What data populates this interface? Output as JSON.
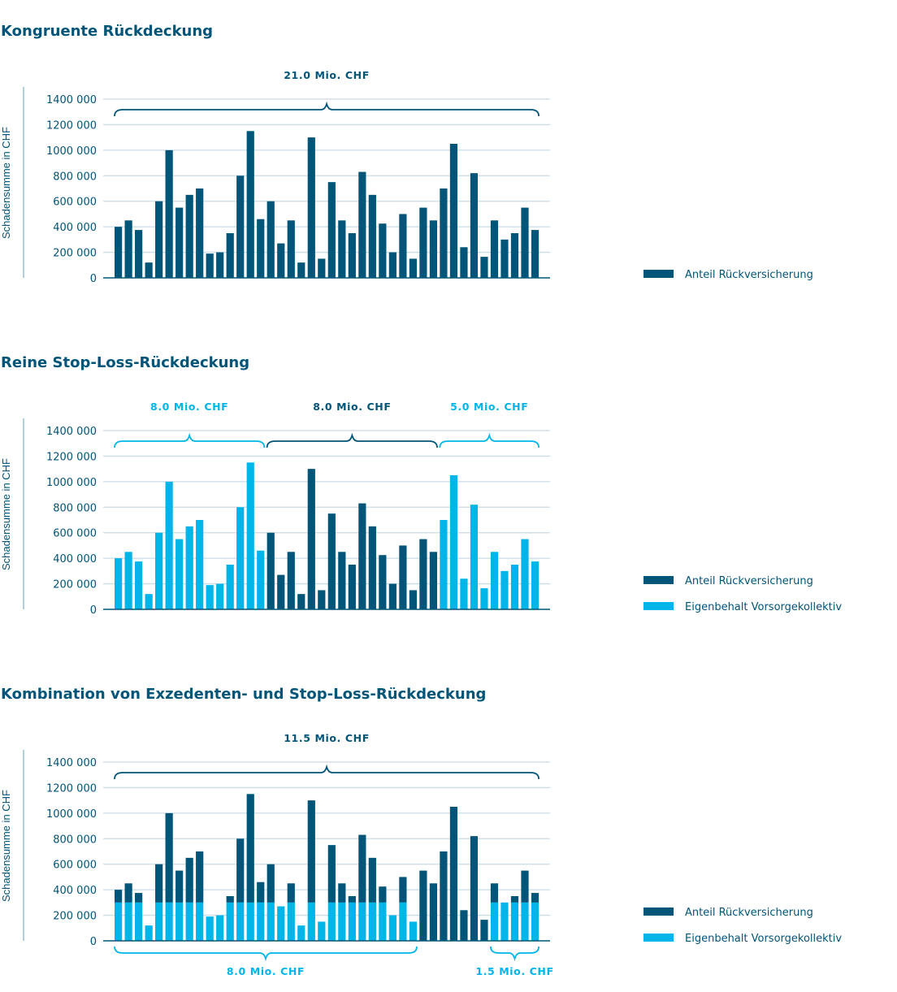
{
  "colors": {
    "dark": "#005578",
    "light": "#00b5e8",
    "grid": "#c9dbe4"
  },
  "chart_data": [
    {
      "type": "bar",
      "title": "Kongruente Rückdeckung",
      "ylabel": "Schadensumme in CHF",
      "ylim": [
        0,
        1400000
      ],
      "yticks": [
        "0",
        "200 000",
        "400 000",
        "600 000",
        "800 000",
        "1000 000",
        "1200 000",
        "1400 000"
      ],
      "grid": true,
      "legend_position": "right",
      "series": [
        {
          "name": "Anteil Rückversicherung",
          "color": "dark",
          "values": [
            400000,
            450000,
            375000,
            120000,
            600000,
            1000000,
            550000,
            650000,
            700000,
            190000,
            200000,
            350000,
            800000,
            1150000,
            460000,
            600000,
            270000,
            450000,
            120000,
            1100000,
            150000,
            750000,
            450000,
            350000,
            830000,
            650000,
            425000,
            200000,
            500000,
            150000,
            550000,
            450000,
            700000,
            1050000,
            240000,
            820000,
            165000,
            450000,
            300000,
            350000,
            550000,
            375000
          ]
        }
      ],
      "brackets": [
        {
          "label": "21.0 Mio. CHF",
          "from_bar": 0,
          "to_bar": 41,
          "color": "dark",
          "position": "top"
        }
      ]
    },
    {
      "type": "bar",
      "stacked": true,
      "title": "Reine Stop-Loss-Rückdeckung",
      "ylabel": "Schadensumme in CHF",
      "ylim": [
        0,
        1400000
      ],
      "yticks": [
        "0",
        "200 000",
        "400 000",
        "600 000",
        "800 000",
        "1000 000",
        "1200 000",
        "1400 000"
      ],
      "grid": true,
      "legend_position": "right",
      "series": [
        {
          "name": "Eigenbehalt Vorsorgekollektiv",
          "color": "light",
          "values": [
            400000,
            450000,
            375000,
            120000,
            600000,
            1000000,
            550000,
            650000,
            700000,
            190000,
            200000,
            350000,
            800000,
            1150000,
            460000,
            0,
            0,
            0,
            0,
            0,
            0,
            0,
            0,
            0,
            0,
            0,
            0,
            0,
            0,
            0,
            0,
            0,
            700000,
            1050000,
            240000,
            820000,
            165000,
            450000,
            300000,
            350000,
            550000,
            375000
          ]
        },
        {
          "name": "Anteil Rückversicherung",
          "color": "dark",
          "values": [
            0,
            0,
            0,
            0,
            0,
            0,
            0,
            0,
            0,
            0,
            0,
            0,
            0,
            0,
            0,
            600000,
            270000,
            450000,
            120000,
            1100000,
            150000,
            750000,
            450000,
            350000,
            830000,
            650000,
            425000,
            200000,
            500000,
            150000,
            550000,
            450000,
            0,
            0,
            0,
            0,
            0,
            0,
            0,
            0,
            0,
            0
          ]
        }
      ],
      "legend_order": [
        1,
        0
      ],
      "brackets": [
        {
          "label": "8.0 Mio. CHF",
          "from_bar": 0,
          "to_bar": 14,
          "color": "light",
          "position": "top"
        },
        {
          "label": "8.0 Mio. CHF",
          "from_bar": 15,
          "to_bar": 31,
          "color": "dark",
          "position": "top"
        },
        {
          "label": "5.0 Mio. CHF",
          "from_bar": 32,
          "to_bar": 41,
          "color": "light",
          "position": "top"
        }
      ]
    },
    {
      "type": "bar",
      "stacked": true,
      "title": "Kombination von Exzedenten- und Stop-Loss-Rückdeckung",
      "ylabel": "Schadensumme in CHF",
      "ylim": [
        0,
        1400000
      ],
      "yticks": [
        "0",
        "200 000",
        "400 000",
        "600 000",
        "800 000",
        "1000 000",
        "1200 000",
        "1400 000"
      ],
      "grid": true,
      "legend_position": "right",
      "series": [
        {
          "name": "Eigenbehalt Vorsorgekollektiv",
          "color": "light",
          "values": [
            300000,
            300000,
            300000,
            120000,
            300000,
            300000,
            300000,
            300000,
            300000,
            190000,
            200000,
            300000,
            300000,
            300000,
            300000,
            300000,
            270000,
            300000,
            120000,
            300000,
            150000,
            300000,
            300000,
            300000,
            300000,
            300000,
            300000,
            200000,
            300000,
            150000,
            0,
            0,
            0,
            0,
            0,
            0,
            0,
            300000,
            300000,
            300000,
            300000,
            300000
          ]
        },
        {
          "name": "Anteil Rückversicherung",
          "color": "dark",
          "values": [
            100000,
            150000,
            75000,
            0,
            300000,
            700000,
            250000,
            350000,
            400000,
            0,
            0,
            50000,
            500000,
            850000,
            160000,
            300000,
            0,
            150000,
            0,
            800000,
            0,
            450000,
            150000,
            50000,
            530000,
            350000,
            125000,
            0,
            200000,
            0,
            550000,
            450000,
            700000,
            1050000,
            240000,
            820000,
            165000,
            150000,
            0,
            50000,
            250000,
            75000
          ]
        }
      ],
      "legend_order": [
        1,
        0
      ],
      "brackets": [
        {
          "label": "11.5 Mio. CHF",
          "from_bar": 0,
          "to_bar": 41,
          "color": "dark",
          "position": "top"
        },
        {
          "label": "8.0 Mio. CHF",
          "from_bar": 0,
          "to_bar": 29,
          "color": "light",
          "position": "bottom"
        },
        {
          "label": "1.5 Mio. CHF",
          "from_bar": 37,
          "to_bar": 41,
          "color": "light",
          "position": "bottom"
        }
      ]
    }
  ]
}
